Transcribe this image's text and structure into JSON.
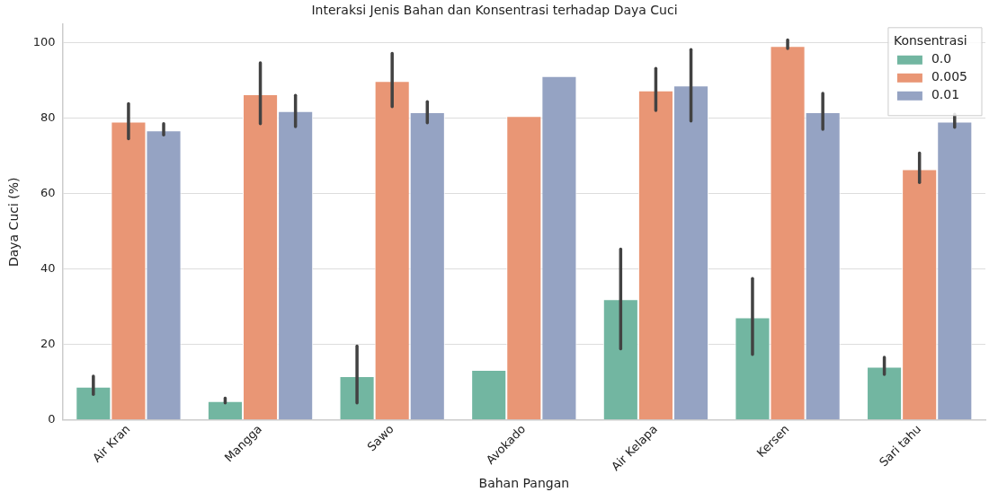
{
  "chart_data": {
    "type": "bar",
    "title": "Interaksi Jenis Bahan dan Konsentrasi terhadap Daya Cuci",
    "xlabel": "Bahan Pangan",
    "ylabel": "Daya Cuci (%)",
    "legend_title": "Konsentrasi",
    "categories": [
      "Air Kran",
      "Mangga",
      "Sawo",
      "Avokado",
      "Air Kelapa",
      "Kersen",
      "Sari tahu"
    ],
    "series": [
      {
        "name": "0.0",
        "color": "#72b6a1",
        "values": [
          8.8,
          5.0,
          11.6,
          13.3,
          32.0,
          27.2,
          14.1
        ],
        "errors": [
          [
            6.8,
            11.6
          ],
          [
            4.5,
            5.8
          ],
          [
            4.5,
            19.6
          ],
          null,
          [
            18.9,
            45.3
          ],
          [
            17.4,
            37.5
          ],
          [
            12.1,
            16.6
          ]
        ]
      },
      {
        "name": "0.005",
        "color": "#e99675",
        "values": [
          79.1,
          86.4,
          89.9,
          80.6,
          87.4,
          99.2,
          66.5
        ],
        "errors": [
          [
            74.6,
            83.9
          ],
          [
            78.6,
            94.7
          ],
          [
            83.1,
            97.2
          ],
          null,
          [
            82.1,
            93.2
          ],
          [
            98.5,
            100.8
          ],
          [
            63.0,
            70.8
          ]
        ]
      },
      {
        "name": "0.01",
        "color": "#95a3c3",
        "values": [
          76.8,
          81.9,
          81.6,
          91.2,
          88.7,
          81.6,
          79.1
        ],
        "errors": [
          [
            75.6,
            78.6
          ],
          [
            77.8,
            86.1
          ],
          [
            78.8,
            84.4
          ],
          null,
          [
            79.3,
            98.2
          ],
          [
            77.1,
            86.6
          ],
          [
            77.6,
            81.1
          ]
        ]
      }
    ],
    "ylim": [
      0,
      105
    ],
    "yticks": [
      0,
      20,
      40,
      60,
      80,
      100
    ],
    "grid": "y",
    "legend": "top right"
  }
}
